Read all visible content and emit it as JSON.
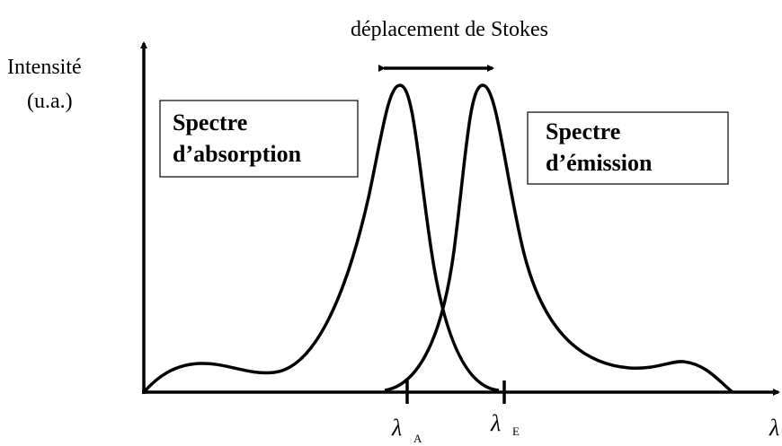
{
  "title": "déplacement de Stokes",
  "y_axis": {
    "lines": [
      "Intensité",
      "(u.a.)"
    ]
  },
  "boxes": [
    {
      "lines": [
        "Spectre",
        "d’absorption"
      ]
    },
    {
      "lines": [
        "Spectre",
        "d’émission"
      ]
    }
  ],
  "x_ticks": [
    {
      "symbol": "λ",
      "sub": "A"
    },
    {
      "symbol": "λ",
      "sub": "E"
    }
  ],
  "x_axis": {
    "label": "λ"
  }
}
